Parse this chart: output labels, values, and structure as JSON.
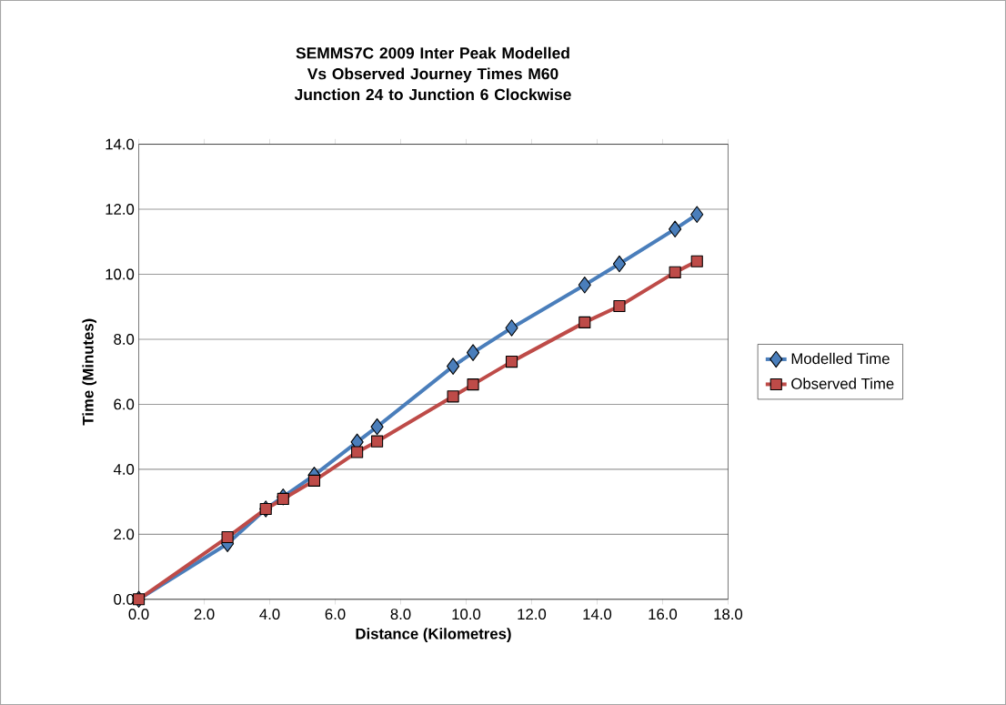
{
  "chart_data": {
    "type": "line",
    "title": "SEMMS7C 2009 Inter Peak Modelled Vs Observed Journey Times M60 Junction 24 to Junction 6 Clockwise",
    "xlabel": "Distance (Kilometres)",
    "ylabel": "Time (Minutes)",
    "x": [
      0,
      2.71,
      3.88,
      4.41,
      5.36,
      6.67,
      7.28,
      9.6,
      10.21,
      11.39,
      13.62,
      14.68,
      16.38,
      17.05
    ],
    "series": [
      {
        "name": "Modelled Time",
        "color": "#4a7ebb",
        "marker": "diamond",
        "values": [
          0,
          1.71,
          2.78,
          3.15,
          3.82,
          4.84,
          5.31,
          7.17,
          7.59,
          8.35,
          9.67,
          10.32,
          11.39,
          11.84
        ]
      },
      {
        "name": "Observed Time",
        "color": "#be4b48",
        "marker": "square",
        "values": [
          0,
          1.91,
          2.78,
          3.09,
          3.65,
          4.53,
          4.86,
          6.24,
          6.61,
          7.31,
          8.52,
          9.02,
          10.06,
          10.4
        ]
      }
    ],
    "xlim": [
      0,
      18
    ],
    "ylim": [
      0,
      14
    ],
    "xticks": [
      {
        "value": 0,
        "label": "0.0"
      },
      {
        "value": 2,
        "label": "2.0"
      },
      {
        "value": 4,
        "label": "4.0"
      },
      {
        "value": 6,
        "label": "6.0"
      },
      {
        "value": 8,
        "label": "8.0"
      },
      {
        "value": 10,
        "label": "10.0"
      },
      {
        "value": 12,
        "label": "12.0"
      },
      {
        "value": 14,
        "label": "14.0"
      },
      {
        "value": 16,
        "label": "16.0"
      },
      {
        "value": 18,
        "label": "18.0"
      }
    ],
    "yticks": [
      {
        "value": 0,
        "label": "0.0"
      },
      {
        "value": 2,
        "label": "2.0"
      },
      {
        "value": 4,
        "label": "4.0"
      },
      {
        "value": 6,
        "label": "6.0"
      },
      {
        "value": 8,
        "label": "8.0"
      },
      {
        "value": 10,
        "label": "10.0"
      },
      {
        "value": 12,
        "label": "12.0"
      },
      {
        "value": 14,
        "label": "14.0"
      }
    ],
    "grid": "y",
    "legend": "right",
    "line_style": "solid"
  }
}
